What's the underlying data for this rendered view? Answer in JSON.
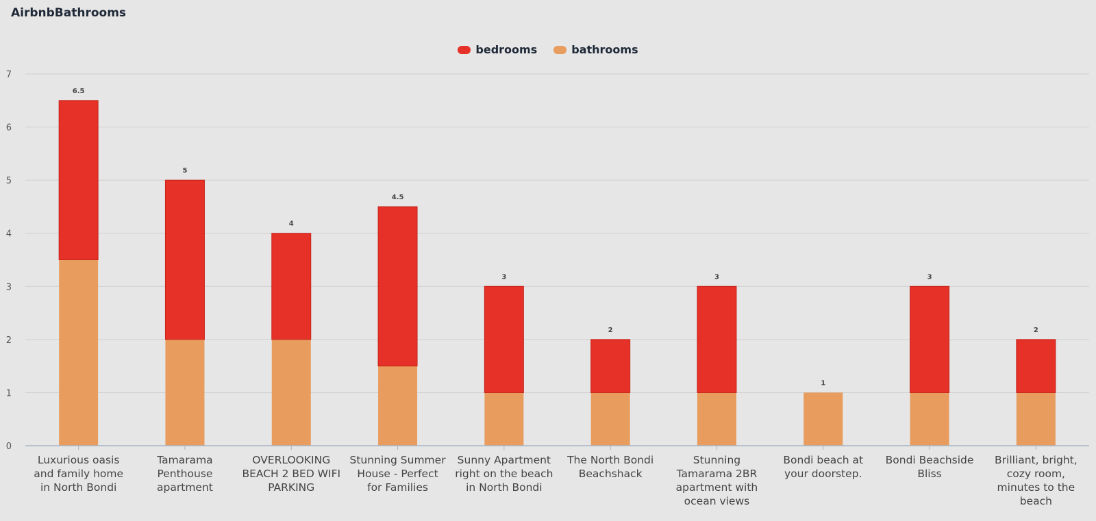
{
  "title": "AirbnbBathrooms",
  "colors": {
    "bedrooms": "#e53127",
    "bathrooms": "#e89c5d",
    "grid": "#cfcfcf",
    "axis": "#a9b4c4"
  },
  "chart_data": {
    "type": "bar",
    "stacked": true,
    "title": "AirbnbBathrooms",
    "xlabel": "",
    "ylabel": "",
    "ylim": [
      0,
      7
    ],
    "yticks": [
      0,
      1,
      2,
      3,
      4,
      5,
      6,
      7
    ],
    "legend": "top-center",
    "grid": true,
    "categories": [
      [
        "Luxurious oasis",
        "and family home",
        "in North Bondi"
      ],
      [
        "Tamarama",
        "Penthouse",
        "apartment"
      ],
      [
        "OVERLOOKING",
        "BEACH 2 BED WIFI",
        "PARKING"
      ],
      [
        "Stunning Summer",
        "House - Perfect",
        "for Families"
      ],
      [
        "Sunny Apartment",
        "right on the beach",
        "in North Bondi"
      ],
      [
        "The North Bondi",
        "Beachshack"
      ],
      [
        "Stunning",
        "Tamarama 2BR",
        "apartment with",
        "ocean views"
      ],
      [
        "Bondi beach at",
        "your doorstep."
      ],
      [
        "Bondi Beachside",
        "Bliss"
      ],
      [
        "Brilliant, bright,",
        "cozy room,",
        "minutes to the",
        "beach"
      ]
    ],
    "series": [
      {
        "name": "bathrooms",
        "values": [
          3.5,
          2,
          2,
          1.5,
          1,
          1,
          1,
          1,
          1,
          1
        ]
      },
      {
        "name": "bedrooms",
        "values": [
          3,
          3,
          2,
          3,
          2,
          1,
          2,
          0,
          2,
          1
        ]
      }
    ],
    "totals": [
      "6.5",
      "5",
      "4",
      "4.5",
      "3",
      "2",
      "3",
      "1",
      "3",
      "2"
    ]
  }
}
